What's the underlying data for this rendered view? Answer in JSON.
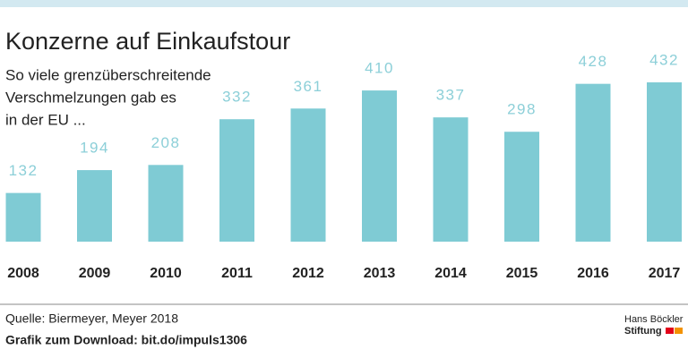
{
  "chart_data": {
    "type": "bar",
    "title": "Konzerne auf Einkaufstour",
    "subtitle": [
      "So viele grenzüberschreitende",
      "Verschmelzungen gab es",
      "in der EU ..."
    ],
    "categories": [
      "2008",
      "2009",
      "2010",
      "2011",
      "2012",
      "2013",
      "2014",
      "2015",
      "2016",
      "2017"
    ],
    "values": [
      132,
      194,
      208,
      332,
      361,
      410,
      337,
      298,
      428,
      432
    ],
    "color": "#7fcbd4",
    "label_color": "#8ccfd8",
    "source": [
      "Quelle: Biermeyer, Meyer 2018",
      "Grafik zum Download: bit.do/impuls1306"
    ],
    "logo": [
      "Hans Böckler",
      "Stiftung"
    ]
  }
}
